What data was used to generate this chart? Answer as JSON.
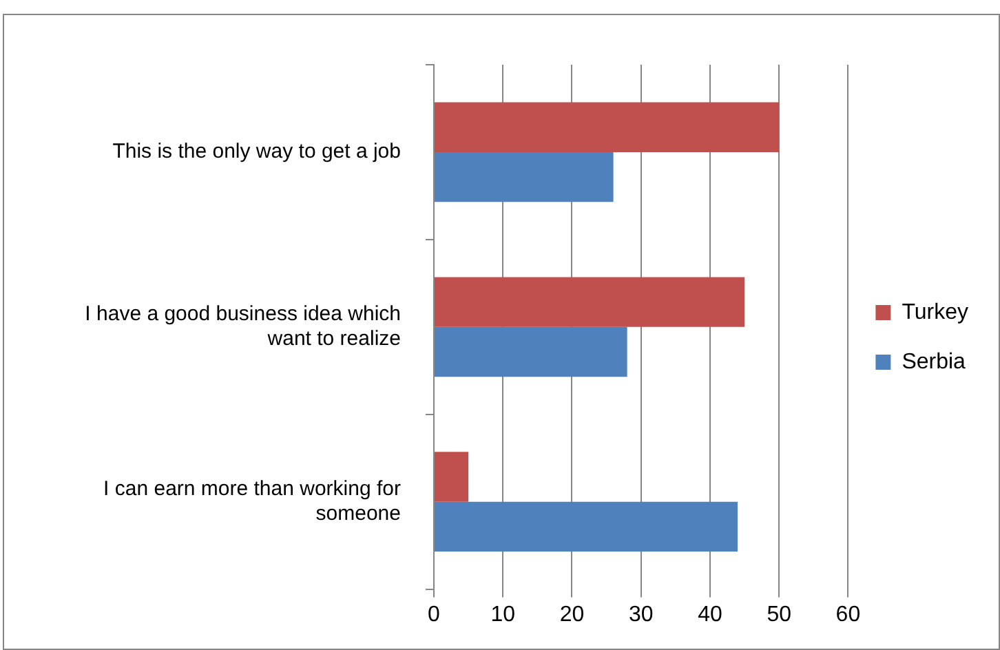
{
  "chart_data": {
    "type": "bar",
    "orientation": "horizontal",
    "categories": [
      "This is the only way to get a job",
      "I have a good business idea which want to realize",
      "I can earn more than working for someone"
    ],
    "series": [
      {
        "name": "Turkey",
        "color": "#c0504d",
        "values": [
          50,
          45,
          5
        ]
      },
      {
        "name": "Serbia",
        "color": "#4f81bd",
        "values": [
          26,
          28,
          44
        ]
      }
    ],
    "xlim": [
      0,
      60
    ],
    "xticks": [
      0,
      10,
      20,
      30,
      40,
      50,
      60
    ],
    "grid": "x",
    "legend": "right"
  }
}
